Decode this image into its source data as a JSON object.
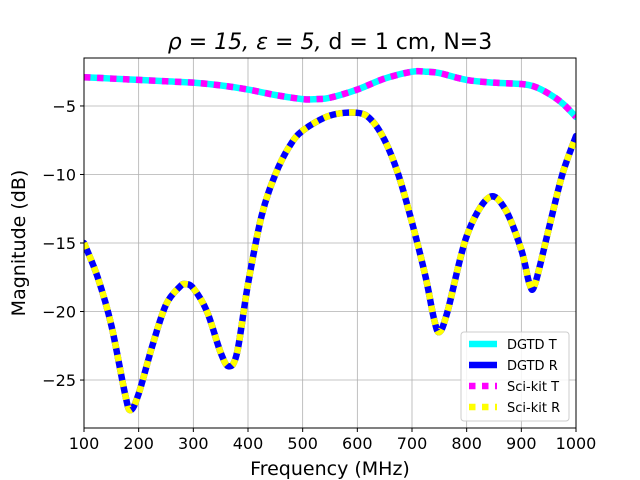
{
  "chart_data": {
    "type": "line",
    "title_math": "ρ = 15, ε = 5,",
    "title_rest": " d = 1 cm, N=3",
    "xlabel": "Frequency (MHz)",
    "ylabel": "Magnitude (dB)",
    "xlim": [
      100,
      1000
    ],
    "ylim": [
      -28.5,
      -1.5
    ],
    "xticks": [
      100,
      200,
      300,
      400,
      500,
      600,
      700,
      800,
      900,
      1000
    ],
    "yticks": [
      -25,
      -20,
      -15,
      -10,
      -5
    ],
    "ytick_labels": [
      "−25",
      "−20",
      "−15",
      "−10",
      "−5"
    ],
    "grid": true,
    "legend_position": "lower-right",
    "series": [
      {
        "name": "DGTD T",
        "color": "#00ffff",
        "style": "solid",
        "x": [
          100,
          150,
          200,
          250,
          300,
          350,
          400,
          450,
          500,
          525,
          550,
          600,
          650,
          700,
          725,
          750,
          800,
          850,
          900,
          925,
          950,
          975,
          1000
        ],
        "y": [
          -2.9,
          -3.0,
          -3.1,
          -3.2,
          -3.3,
          -3.5,
          -3.8,
          -4.2,
          -4.5,
          -4.5,
          -4.4,
          -3.8,
          -3.0,
          -2.5,
          -2.5,
          -2.6,
          -3.1,
          -3.3,
          -3.4,
          -3.6,
          -4.1,
          -4.8,
          -5.8
        ]
      },
      {
        "name": "DGTD R",
        "color": "#0000ff",
        "style": "solid",
        "x": [
          100,
          125,
          150,
          175,
          185,
          200,
          225,
          250,
          275,
          285,
          300,
          325,
          350,
          365,
          380,
          400,
          425,
          450,
          475,
          500,
          550,
          600,
          625,
          650,
          675,
          700,
          725,
          740,
          750,
          765,
          800,
          840,
          870,
          900,
          915,
          925,
          950,
          975,
          1000
        ],
        "y": [
          -15,
          -17.5,
          -21,
          -26,
          -27.2,
          -26,
          -22.5,
          -19.5,
          -18.2,
          -18.0,
          -18.3,
          -20,
          -23,
          -24,
          -23,
          -18,
          -13,
          -10,
          -8,
          -6.8,
          -5.7,
          -5.5,
          -6.0,
          -7.5,
          -10,
          -13.5,
          -17.5,
          -20.5,
          -21.5,
          -20,
          -14.5,
          -11.7,
          -12.5,
          -15.5,
          -18,
          -18,
          -14,
          -10,
          -7.2
        ]
      },
      {
        "name": "Sci-kit T",
        "color": "#ff00ff",
        "style": "dotted",
        "ref": 0
      },
      {
        "name": "Sci-kit R",
        "color": "#ffff00",
        "style": "dotted",
        "ref": 1
      }
    ]
  }
}
